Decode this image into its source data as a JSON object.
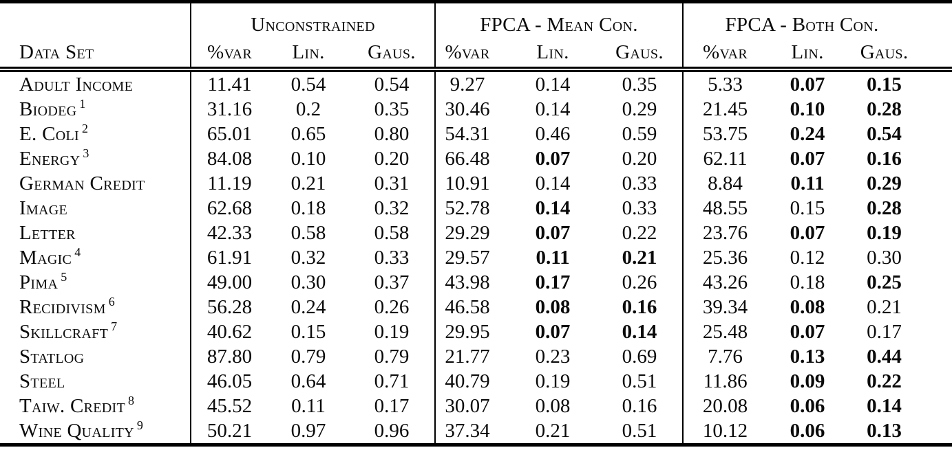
{
  "page": {
    "background": "#ffffff",
    "text_color": "#0a0a0a",
    "rule_color": "#000000"
  },
  "table": {
    "dataset_header": "Data Set",
    "groups": [
      {
        "label": "Unconstrained"
      },
      {
        "label": "FPCA - Mean Con."
      },
      {
        "label": "FPCA - Both Con."
      }
    ],
    "sub_headers": [
      "%var",
      "Lin.",
      "Gaus."
    ],
    "rows": [
      {
        "name": "Adult Income",
        "sup": "",
        "cells": [
          "11.41",
          "0.54",
          "0.54",
          "9.27",
          "0.14",
          "0.35",
          "5.33",
          "0.07",
          "0.15"
        ],
        "bold": [
          7,
          8
        ]
      },
      {
        "name": "Biodeg",
        "sup": "1",
        "cells": [
          "31.16",
          "0.2",
          "0.35",
          "30.46",
          "0.14",
          "0.29",
          "21.45",
          "0.10",
          "0.28"
        ],
        "bold": [
          7,
          8
        ]
      },
      {
        "name": "E. Coli",
        "sup": "2",
        "cells": [
          "65.01",
          "0.65",
          "0.80",
          "54.31",
          "0.46",
          "0.59",
          "53.75",
          "0.24",
          "0.54"
        ],
        "bold": [
          7,
          8
        ]
      },
      {
        "name": "Energy",
        "sup": "3",
        "cells": [
          "84.08",
          "0.10",
          "0.20",
          "66.48",
          "0.07",
          "0.20",
          "62.11",
          "0.07",
          "0.16"
        ],
        "bold": [
          4,
          7,
          8
        ]
      },
      {
        "name": "German Credit",
        "sup": "",
        "cells": [
          "11.19",
          "0.21",
          "0.31",
          "10.91",
          "0.14",
          "0.33",
          "8.84",
          "0.11",
          "0.29"
        ],
        "bold": [
          7,
          8
        ]
      },
      {
        "name": "Image",
        "sup": "",
        "cells": [
          "62.68",
          "0.18",
          "0.32",
          "52.78",
          "0.14",
          "0.33",
          "48.55",
          "0.15",
          "0.28"
        ],
        "bold": [
          4,
          8
        ]
      },
      {
        "name": "Letter",
        "sup": "",
        "cells": [
          "42.33",
          "0.58",
          "0.58",
          "29.29",
          "0.07",
          "0.22",
          "23.76",
          "0.07",
          "0.19"
        ],
        "bold": [
          4,
          7,
          8
        ]
      },
      {
        "name": "Magic",
        "sup": "4",
        "cells": [
          "61.91",
          "0.32",
          "0.33",
          "29.57",
          "0.11",
          "0.21",
          "25.36",
          "0.12",
          "0.30"
        ],
        "bold": [
          4,
          5
        ]
      },
      {
        "name": "Pima",
        "sup": "5",
        "cells": [
          "49.00",
          "0.30",
          "0.37",
          "43.98",
          "0.17",
          "0.26",
          "43.26",
          "0.18",
          "0.25"
        ],
        "bold": [
          4,
          8
        ]
      },
      {
        "name": "Recidivism",
        "sup": "6",
        "cells": [
          "56.28",
          "0.24",
          "0.26",
          "46.58",
          "0.08",
          "0.16",
          "39.34",
          "0.08",
          "0.21"
        ],
        "bold": [
          4,
          5,
          7
        ]
      },
      {
        "name": "Skillcraft",
        "sup": "7",
        "cells": [
          "40.62",
          "0.15",
          "0.19",
          "29.95",
          "0.07",
          "0.14",
          "25.48",
          "0.07",
          "0.17"
        ],
        "bold": [
          4,
          5,
          7
        ]
      },
      {
        "name": "Statlog",
        "sup": "",
        "cells": [
          "87.80",
          "0.79",
          "0.79",
          "21.77",
          "0.23",
          "0.69",
          "7.76",
          "0.13",
          "0.44"
        ],
        "bold": [
          7,
          8
        ]
      },
      {
        "name": "Steel",
        "sup": "",
        "cells": [
          "46.05",
          "0.64",
          "0.71",
          "40.79",
          "0.19",
          "0.51",
          "11.86",
          "0.09",
          "0.22"
        ],
        "bold": [
          7,
          8
        ]
      },
      {
        "name": "Taiw. Credit",
        "sup": "8",
        "cells": [
          "45.52",
          "0.11",
          "0.17",
          "30.07",
          "0.08",
          "0.16",
          "20.08",
          "0.06",
          "0.14"
        ],
        "bold": [
          7,
          8
        ]
      },
      {
        "name": "Wine Quality",
        "sup": "9",
        "cells": [
          "50.21",
          "0.97",
          "0.96",
          "37.34",
          "0.21",
          "0.51",
          "10.12",
          "0.06",
          "0.13"
        ],
        "bold": [
          7,
          8
        ]
      }
    ]
  }
}
